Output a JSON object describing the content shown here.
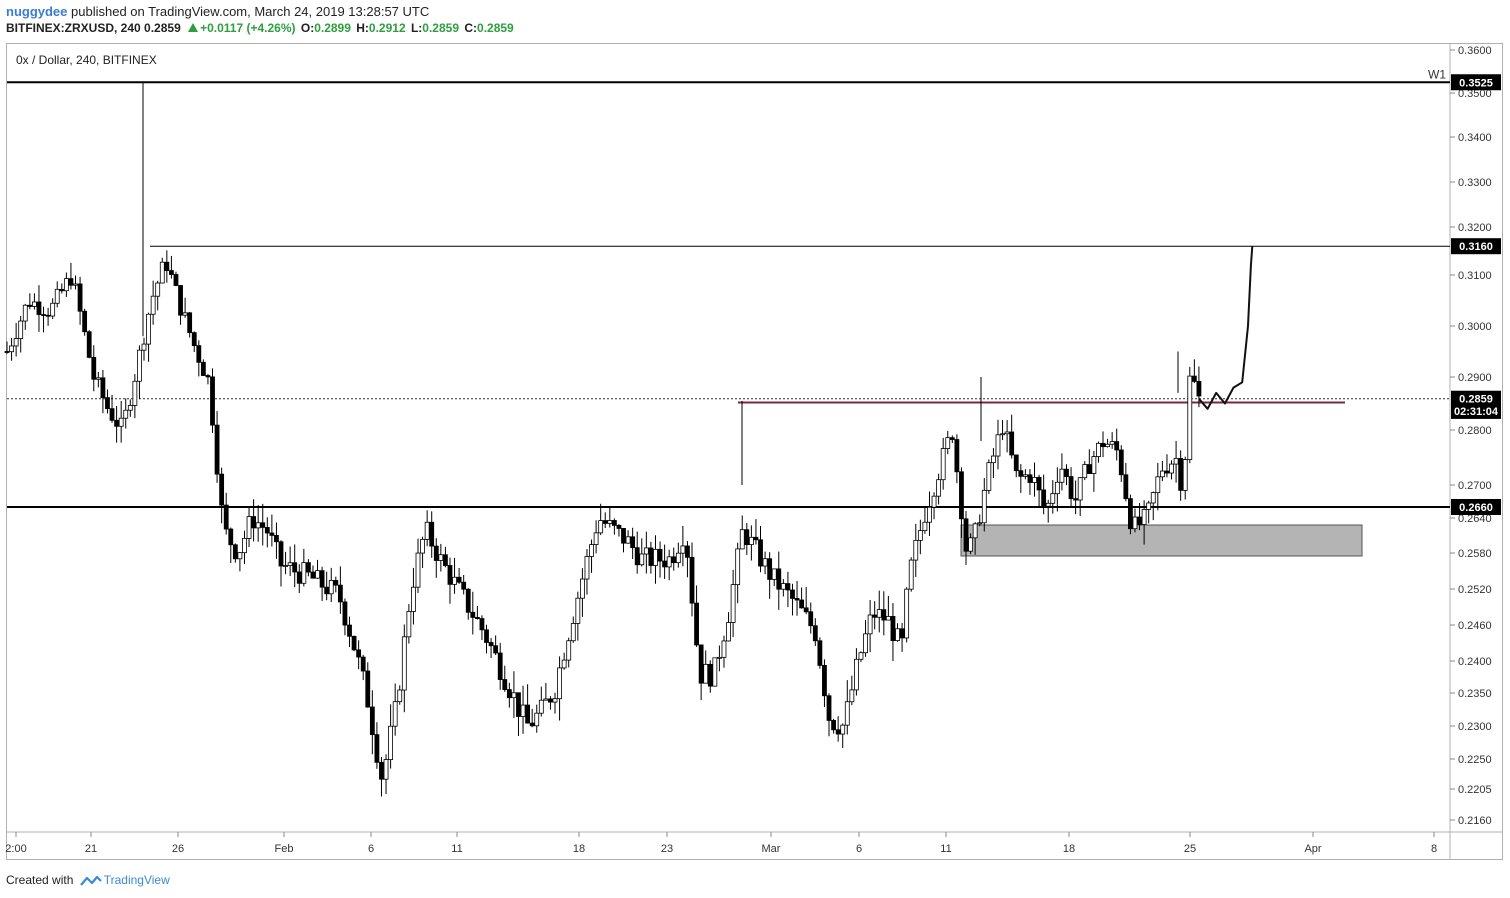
{
  "header": {
    "author": "nuggydee",
    "published_text": "published on TradingView.com, March 24, 2019 13:28:57 UTC",
    "symbol": "BITFINEX:ZRXUSD, 240",
    "last": "0.2859",
    "change": "+0.0117 (+4.26%)",
    "o_label": "O:",
    "o_value": "0.2899",
    "h_label": "H:",
    "h_value": "0.2912",
    "l_label": "L:",
    "l_value": "0.2859",
    "c_label": "C:",
    "c_value": "0.2859"
  },
  "legend": {
    "title": "0x / Dollar, 240, BITFINEX"
  },
  "footer": {
    "created_with": "Created with",
    "brand": "TradingView"
  },
  "colors": {
    "up": "#2e9e3e",
    "brand": "#3a8ad6",
    "zone": "#b4b4b4",
    "resistance": "#7a2a3e"
  },
  "chart_data": {
    "type": "candlestick",
    "title": "0x / Dollar, 240, BITFINEX",
    "x_axis_ticks": [
      "2:00",
      "21",
      "26",
      "Feb",
      "6",
      "11",
      "18",
      "23",
      "Mar",
      "6",
      "11",
      "18",
      "25",
      "Apr",
      "8"
    ],
    "y_axis_ticks": [
      "0.3600",
      "0.3500",
      "0.3400",
      "0.3300",
      "0.3200",
      "0.3100",
      "0.3000",
      "0.2900",
      "0.2800",
      "0.2700",
      "0.2640",
      "0.2580",
      "0.2520",
      "0.2460",
      "0.2400",
      "0.2350",
      "0.2300",
      "0.2250",
      "0.2205",
      "0.2160"
    ],
    "price_labels": [
      {
        "label": "0.3525",
        "value": 0.3525
      },
      {
        "label": "0.3160",
        "value": 0.316
      },
      {
        "label": "0.2859",
        "value": 0.2859
      },
      {
        "label": "02:31:04",
        "value": 0.2836
      },
      {
        "label": "0.2660",
        "value": 0.266
      }
    ],
    "horizontal_lines": [
      {
        "value": 0.3525,
        "label": "W1",
        "style": "thick"
      },
      {
        "value": 0.316,
        "style": "thin"
      },
      {
        "value": 0.2859,
        "style": "dotted"
      },
      {
        "value": 0.266,
        "style": "thick"
      },
      {
        "value": 0.2852,
        "style": "resistance"
      }
    ],
    "zone": {
      "from": 0.2575,
      "to": 0.2628
    },
    "price_path": [
      [
        0.0,
        0.295
      ],
      [
        0.015,
        0.305
      ],
      [
        0.03,
        0.303
      ],
      [
        0.045,
        0.31
      ],
      [
        0.06,
        0.29
      ],
      [
        0.07,
        0.284
      ],
      [
        0.08,
        0.28
      ],
      [
        0.09,
        0.292
      ],
      [
        0.1,
        0.305
      ],
      [
        0.11,
        0.313
      ],
      [
        0.12,
        0.304
      ],
      [
        0.13,
        0.296
      ],
      [
        0.14,
        0.289
      ],
      [
        0.15,
        0.262
      ],
      [
        0.16,
        0.258
      ],
      [
        0.17,
        0.264
      ],
      [
        0.18,
        0.262
      ],
      [
        0.19,
        0.256
      ],
      [
        0.21,
        0.254
      ],
      [
        0.23,
        0.251
      ],
      [
        0.24,
        0.243
      ],
      [
        0.25,
        0.234
      ],
      [
        0.26,
        0.222
      ],
      [
        0.27,
        0.233
      ],
      [
        0.28,
        0.252
      ],
      [
        0.29,
        0.262
      ],
      [
        0.3,
        0.257
      ],
      [
        0.31,
        0.253
      ],
      [
        0.33,
        0.245
      ],
      [
        0.35,
        0.235
      ],
      [
        0.36,
        0.23
      ],
      [
        0.37,
        0.232
      ],
      [
        0.38,
        0.236
      ],
      [
        0.4,
        0.255
      ],
      [
        0.41,
        0.264
      ],
      [
        0.43,
        0.26
      ],
      [
        0.44,
        0.257
      ],
      [
        0.46,
        0.257
      ],
      [
        0.47,
        0.262
      ],
      [
        0.48,
        0.238
      ],
      [
        0.49,
        0.238
      ],
      [
        0.5,
        0.248
      ],
      [
        0.51,
        0.262
      ],
      [
        0.52,
        0.258
      ],
      [
        0.53,
        0.254
      ],
      [
        0.545,
        0.25
      ],
      [
        0.56,
        0.245
      ],
      [
        0.57,
        0.231
      ],
      [
        0.58,
        0.23
      ],
      [
        0.59,
        0.24
      ],
      [
        0.6,
        0.248
      ],
      [
        0.61,
        0.247
      ],
      [
        0.62,
        0.242
      ],
      [
        0.625,
        0.254
      ],
      [
        0.635,
        0.264
      ],
      [
        0.645,
        0.272
      ],
      [
        0.655,
        0.28
      ],
      [
        0.665,
        0.258
      ],
      [
        0.67,
        0.26
      ],
      [
        0.68,
        0.272
      ],
      [
        0.69,
        0.281
      ],
      [
        0.7,
        0.271
      ],
      [
        0.71,
        0.272
      ],
      [
        0.72,
        0.265
      ],
      [
        0.73,
        0.274
      ],
      [
        0.74,
        0.267
      ],
      [
        0.75,
        0.274
      ],
      [
        0.76,
        0.278
      ],
      [
        0.77,
        0.276
      ],
      [
        0.78,
        0.262
      ],
      [
        0.79,
        0.264
      ],
      [
        0.8,
        0.273
      ],
      [
        0.81,
        0.275
      ],
      [
        0.815,
        0.269
      ],
      [
        0.82,
        0.291
      ],
      [
        0.826,
        0.2859
      ]
    ],
    "projection": [
      [
        0.826,
        0.2859
      ],
      [
        0.832,
        0.284
      ],
      [
        0.838,
        0.287
      ],
      [
        0.844,
        0.285
      ],
      [
        0.85,
        0.288
      ],
      [
        0.856,
        0.289
      ],
      [
        0.86,
        0.3
      ],
      [
        0.862,
        0.312
      ],
      [
        0.863,
        0.316
      ]
    ]
  }
}
